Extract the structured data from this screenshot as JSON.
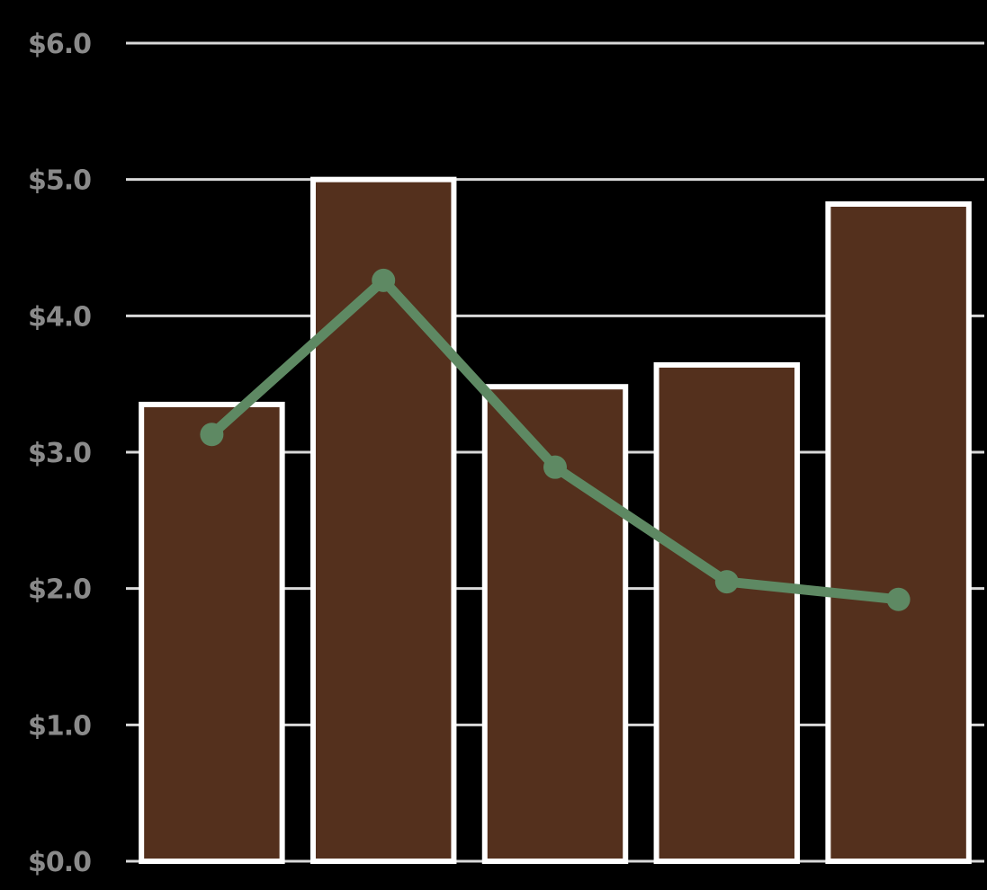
{
  "chart_data": {
    "type": "bar",
    "categories": [
      "",
      "",
      "",
      "",
      ""
    ],
    "ylim": [
      0,
      6
    ],
    "grid": true,
    "y_ticks": [
      {
        "value": 0,
        "label": "$0.0"
      },
      {
        "value": 1,
        "label": "$1.0"
      },
      {
        "value": 2,
        "label": "$2.0"
      },
      {
        "value": 3,
        "label": "$3.0"
      },
      {
        "value": 4,
        "label": "$4.0"
      },
      {
        "value": 5,
        "label": "$5.0"
      },
      {
        "value": 6,
        "label": "$6.0"
      }
    ],
    "series": [
      {
        "type": "bar",
        "values": [
          3.35,
          5.0,
          3.48,
          3.64,
          4.82
        ],
        "color": "#54301d",
        "edge_color": "#ffffff"
      },
      {
        "type": "line",
        "values": [
          3.13,
          4.26,
          2.89,
          2.05,
          1.92
        ],
        "color": "#5e8963",
        "marker": "circle"
      }
    ],
    "colors": {
      "background": "#000000",
      "grid": "#d9d9d9",
      "tick_label": "#8a8a8a"
    }
  }
}
